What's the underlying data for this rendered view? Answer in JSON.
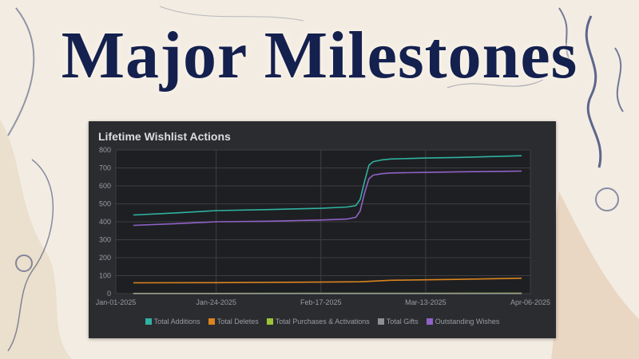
{
  "headline": "Major Milestones",
  "panel": {
    "title": "Lifetime Wishlist Actions"
  },
  "colors": {
    "headline": "#14204e",
    "panel_bg": "#2b2c30",
    "plot_bg": "#1e1f22",
    "grid": "#3d3e43"
  },
  "chart_data": {
    "type": "line",
    "title": "Lifetime Wishlist Actions",
    "xlabel": "",
    "ylabel": "",
    "x_tick_labels": [
      "Jan-01-2025",
      "Jan-24-2025",
      "Feb-17-2025",
      "Mar-13-2025",
      "Apr-06-2025"
    ],
    "x_ticks": [
      "2025-01-01",
      "2025-01-24",
      "2025-02-17",
      "2025-03-13",
      "2025-04-06"
    ],
    "xlim": [
      "2025-01-01",
      "2025-04-06"
    ],
    "ylim": [
      0,
      800
    ],
    "y_ticks": [
      0,
      100,
      200,
      300,
      400,
      500,
      600,
      700,
      800
    ],
    "grid": true,
    "legend_position": "bottom",
    "series": [
      {
        "name": "Total Additions",
        "color": "#2fb2a2",
        "x": [
          "2025-01-05",
          "2025-01-15",
          "2025-01-24",
          "2025-02-05",
          "2025-02-17",
          "2025-02-23",
          "2025-02-25",
          "2025-02-26",
          "2025-02-27",
          "2025-02-28",
          "2025-03-01",
          "2025-03-03",
          "2025-03-05",
          "2025-03-13",
          "2025-03-20",
          "2025-04-04"
        ],
        "y": [
          438,
          450,
          462,
          468,
          475,
          482,
          490,
          525,
          625,
          715,
          735,
          745,
          750,
          755,
          758,
          768
        ]
      },
      {
        "name": "Total Deletes",
        "color": "#d9841e",
        "x": [
          "2025-01-05",
          "2025-01-24",
          "2025-02-17",
          "2025-02-26",
          "2025-03-05",
          "2025-03-20",
          "2025-04-04"
        ],
        "y": [
          60,
          61,
          64,
          66,
          74,
          79,
          86
        ]
      },
      {
        "name": "Total Purchases & Activations",
        "color": "#9cc33a",
        "x": [
          "2025-01-05",
          "2025-04-04"
        ],
        "y": [
          1,
          2
        ]
      },
      {
        "name": "Total Gifts",
        "color": "#8d8f94",
        "x": [
          "2025-01-05",
          "2025-04-04"
        ],
        "y": [
          0,
          0
        ]
      },
      {
        "name": "Outstanding Wishes",
        "color": "#8f63c7",
        "x": [
          "2025-01-05",
          "2025-01-15",
          "2025-01-24",
          "2025-02-05",
          "2025-02-17",
          "2025-02-23",
          "2025-02-25",
          "2025-02-26",
          "2025-02-27",
          "2025-02-28",
          "2025-03-01",
          "2025-03-03",
          "2025-03-05",
          "2025-03-13",
          "2025-03-20",
          "2025-04-04"
        ],
        "y": [
          380,
          390,
          400,
          403,
          410,
          415,
          425,
          460,
          560,
          640,
          660,
          668,
          672,
          675,
          678,
          682
        ]
      }
    ]
  }
}
